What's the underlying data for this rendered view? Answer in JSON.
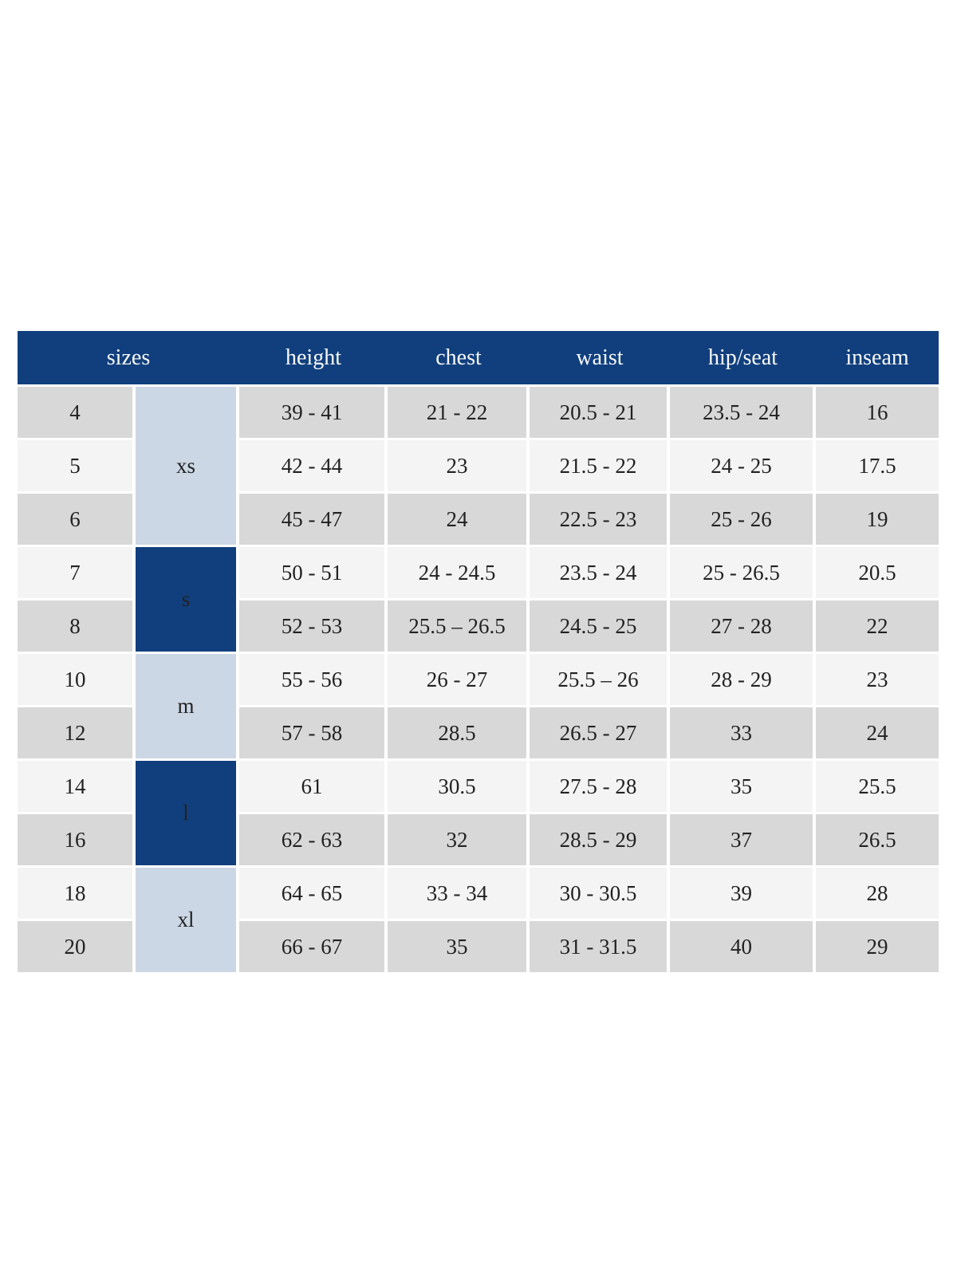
{
  "page": {
    "background": "#ffffff"
  },
  "table": {
    "colors": {
      "header_bg": "#113f7e",
      "header_text": "#fafafa",
      "group_light_bg": "#ccd7e5",
      "group_dark_bg": "#113f7e",
      "group_dark_text": "#fafafa",
      "row_gray_bg": "#d8d8d8",
      "row_light_bg": "#f4f4f4",
      "body_text": "#222222",
      "gap": "#ffffff"
    },
    "headers": [
      "sizes",
      "height",
      "chest",
      "waist",
      "hip/seat",
      "inseam"
    ],
    "groups": [
      {
        "label": "xs",
        "style": "light",
        "span": 3
      },
      {
        "label": "s",
        "style": "dark",
        "span": 2
      },
      {
        "label": "m",
        "style": "light",
        "span": 2
      },
      {
        "label": "l",
        "style": "dark",
        "span": 2
      },
      {
        "label": "xl",
        "style": "light",
        "span": 2
      }
    ],
    "rows": [
      {
        "size": "4",
        "height": "39 - 41",
        "chest": "21 - 22",
        "waist": "20.5 - 21",
        "hip_seat": "23.5 - 24",
        "inseam": "16",
        "shade": "gray"
      },
      {
        "size": "5",
        "height": "42 - 44",
        "chest": "23",
        "waist": "21.5 - 22",
        "hip_seat": "24 - 25",
        "inseam": "17.5",
        "shade": "light"
      },
      {
        "size": "6",
        "height": "45 - 47",
        "chest": "24",
        "waist": "22.5 - 23",
        "hip_seat": "25 - 26",
        "inseam": "19",
        "shade": "gray"
      },
      {
        "size": "7",
        "height": "50 - 51",
        "chest": "24 - 24.5",
        "waist": "23.5 - 24",
        "hip_seat": "25 - 26.5",
        "inseam": "20.5",
        "shade": "light"
      },
      {
        "size": "8",
        "height": "52 - 53",
        "chest": "25.5 – 26.5",
        "waist": "24.5 - 25",
        "hip_seat": "27 - 28",
        "inseam": "22",
        "shade": "gray"
      },
      {
        "size": "10",
        "height": "55 - 56",
        "chest": "26 - 27",
        "waist": "25.5 – 26",
        "hip_seat": "28 - 29",
        "inseam": "23",
        "shade": "light"
      },
      {
        "size": "12",
        "height": "57 - 58",
        "chest": "28.5",
        "waist": "26.5 - 27",
        "hip_seat": "33",
        "inseam": "24",
        "shade": "gray"
      },
      {
        "size": "14",
        "height": "61",
        "chest": "30.5",
        "waist": "27.5 - 28",
        "hip_seat": "35",
        "inseam": "25.5",
        "shade": "light"
      },
      {
        "size": "16",
        "height": "62 - 63",
        "chest": "32",
        "waist": "28.5 - 29",
        "hip_seat": "37",
        "inseam": "26.5",
        "shade": "gray"
      },
      {
        "size": "18",
        "height": "64 - 65",
        "chest": "33 - 34",
        "waist": "30 - 30.5",
        "hip_seat": "39",
        "inseam": "28",
        "shade": "light"
      },
      {
        "size": "20",
        "height": "66 - 67",
        "chest": "35",
        "waist": "31 - 31.5",
        "hip_seat": "40",
        "inseam": "29",
        "shade": "gray"
      }
    ]
  }
}
